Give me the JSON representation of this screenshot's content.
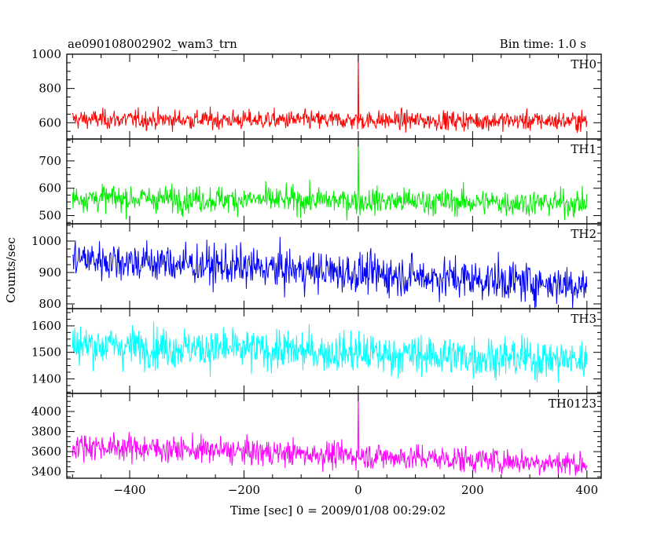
{
  "chart_data": {
    "type": "line",
    "title": "ae090108002902_wam3_trn",
    "bin_time_label": "Bin time: 1.0 s",
    "xlabel": "Time [sec] 0 = 2009/01/08 00:29:02",
    "ylabel": "Counts/sec",
    "xlim": [
      -510,
      425
    ],
    "x_ticks": [
      -400,
      -200,
      0,
      200,
      400
    ],
    "x_tick_labels": [
      "−400",
      "−200",
      "0",
      "200",
      "400"
    ],
    "x_data_range": [
      -500,
      400
    ],
    "bin_time": 1.0,
    "panels": [
      {
        "name": "TH0",
        "color": "#ff0000",
        "ylim": [
          505,
          1000
        ],
        "y_ticks": [
          600,
          800,
          1000
        ],
        "y_tick_labels": [
          "600",
          "800",
          "1000"
        ],
        "series": [
          {
            "name": "TH0",
            "mean_start": 620,
            "mean_end": 610,
            "noise_sd": 28,
            "spikes": [
              {
                "x": 0,
                "y": 1000
              }
            ]
          }
        ]
      },
      {
        "name": "TH1",
        "color": "#00ee00",
        "ylim": [
          470,
          780
        ],
        "y_ticks": [
          500,
          600,
          700
        ],
        "y_tick_labels": [
          "500",
          "600",
          "700"
        ],
        "series": [
          {
            "name": "TH1",
            "mean_start": 565,
            "mean_end": 545,
            "noise_sd": 24,
            "spikes": [
              {
                "x": 0,
                "y": 780
              }
            ]
          }
        ]
      },
      {
        "name": "TH2",
        "color": "#0000ff",
        "ylim": [
          785,
          1055
        ],
        "y_ticks": [
          800,
          900,
          1000
        ],
        "y_tick_labels": [
          "800",
          "900",
          "1000"
        ],
        "series": [
          {
            "name": "TH2",
            "mean_start": 945,
            "mean_end": 860,
            "noise_sd": 32,
            "spikes": []
          }
        ]
      },
      {
        "name": "TH3",
        "color": "#00ffff",
        "ylim": [
          1345,
          1665
        ],
        "y_ticks": [
          1400,
          1500,
          1600
        ],
        "y_tick_labels": [
          "1400",
          "1500",
          "1600"
        ],
        "series": [
          {
            "name": "TH3",
            "mean_start": 1530,
            "mean_end": 1470,
            "noise_sd": 38,
            "spikes": []
          }
        ]
      },
      {
        "name": "TH0123",
        "color": "#ff00ff",
        "ylim": [
          3335,
          4180
        ],
        "y_ticks": [
          3400,
          3600,
          3800,
          4000
        ],
        "y_tick_labels": [
          "3400",
          "3600",
          "3800",
          "4000"
        ],
        "series": [
          {
            "name": "TH0123",
            "mean_start": 3660,
            "mean_end": 3480,
            "noise_sd": 65,
            "spikes": [
              {
                "x": 0,
                "y": 4180
              }
            ]
          }
        ]
      }
    ]
  }
}
